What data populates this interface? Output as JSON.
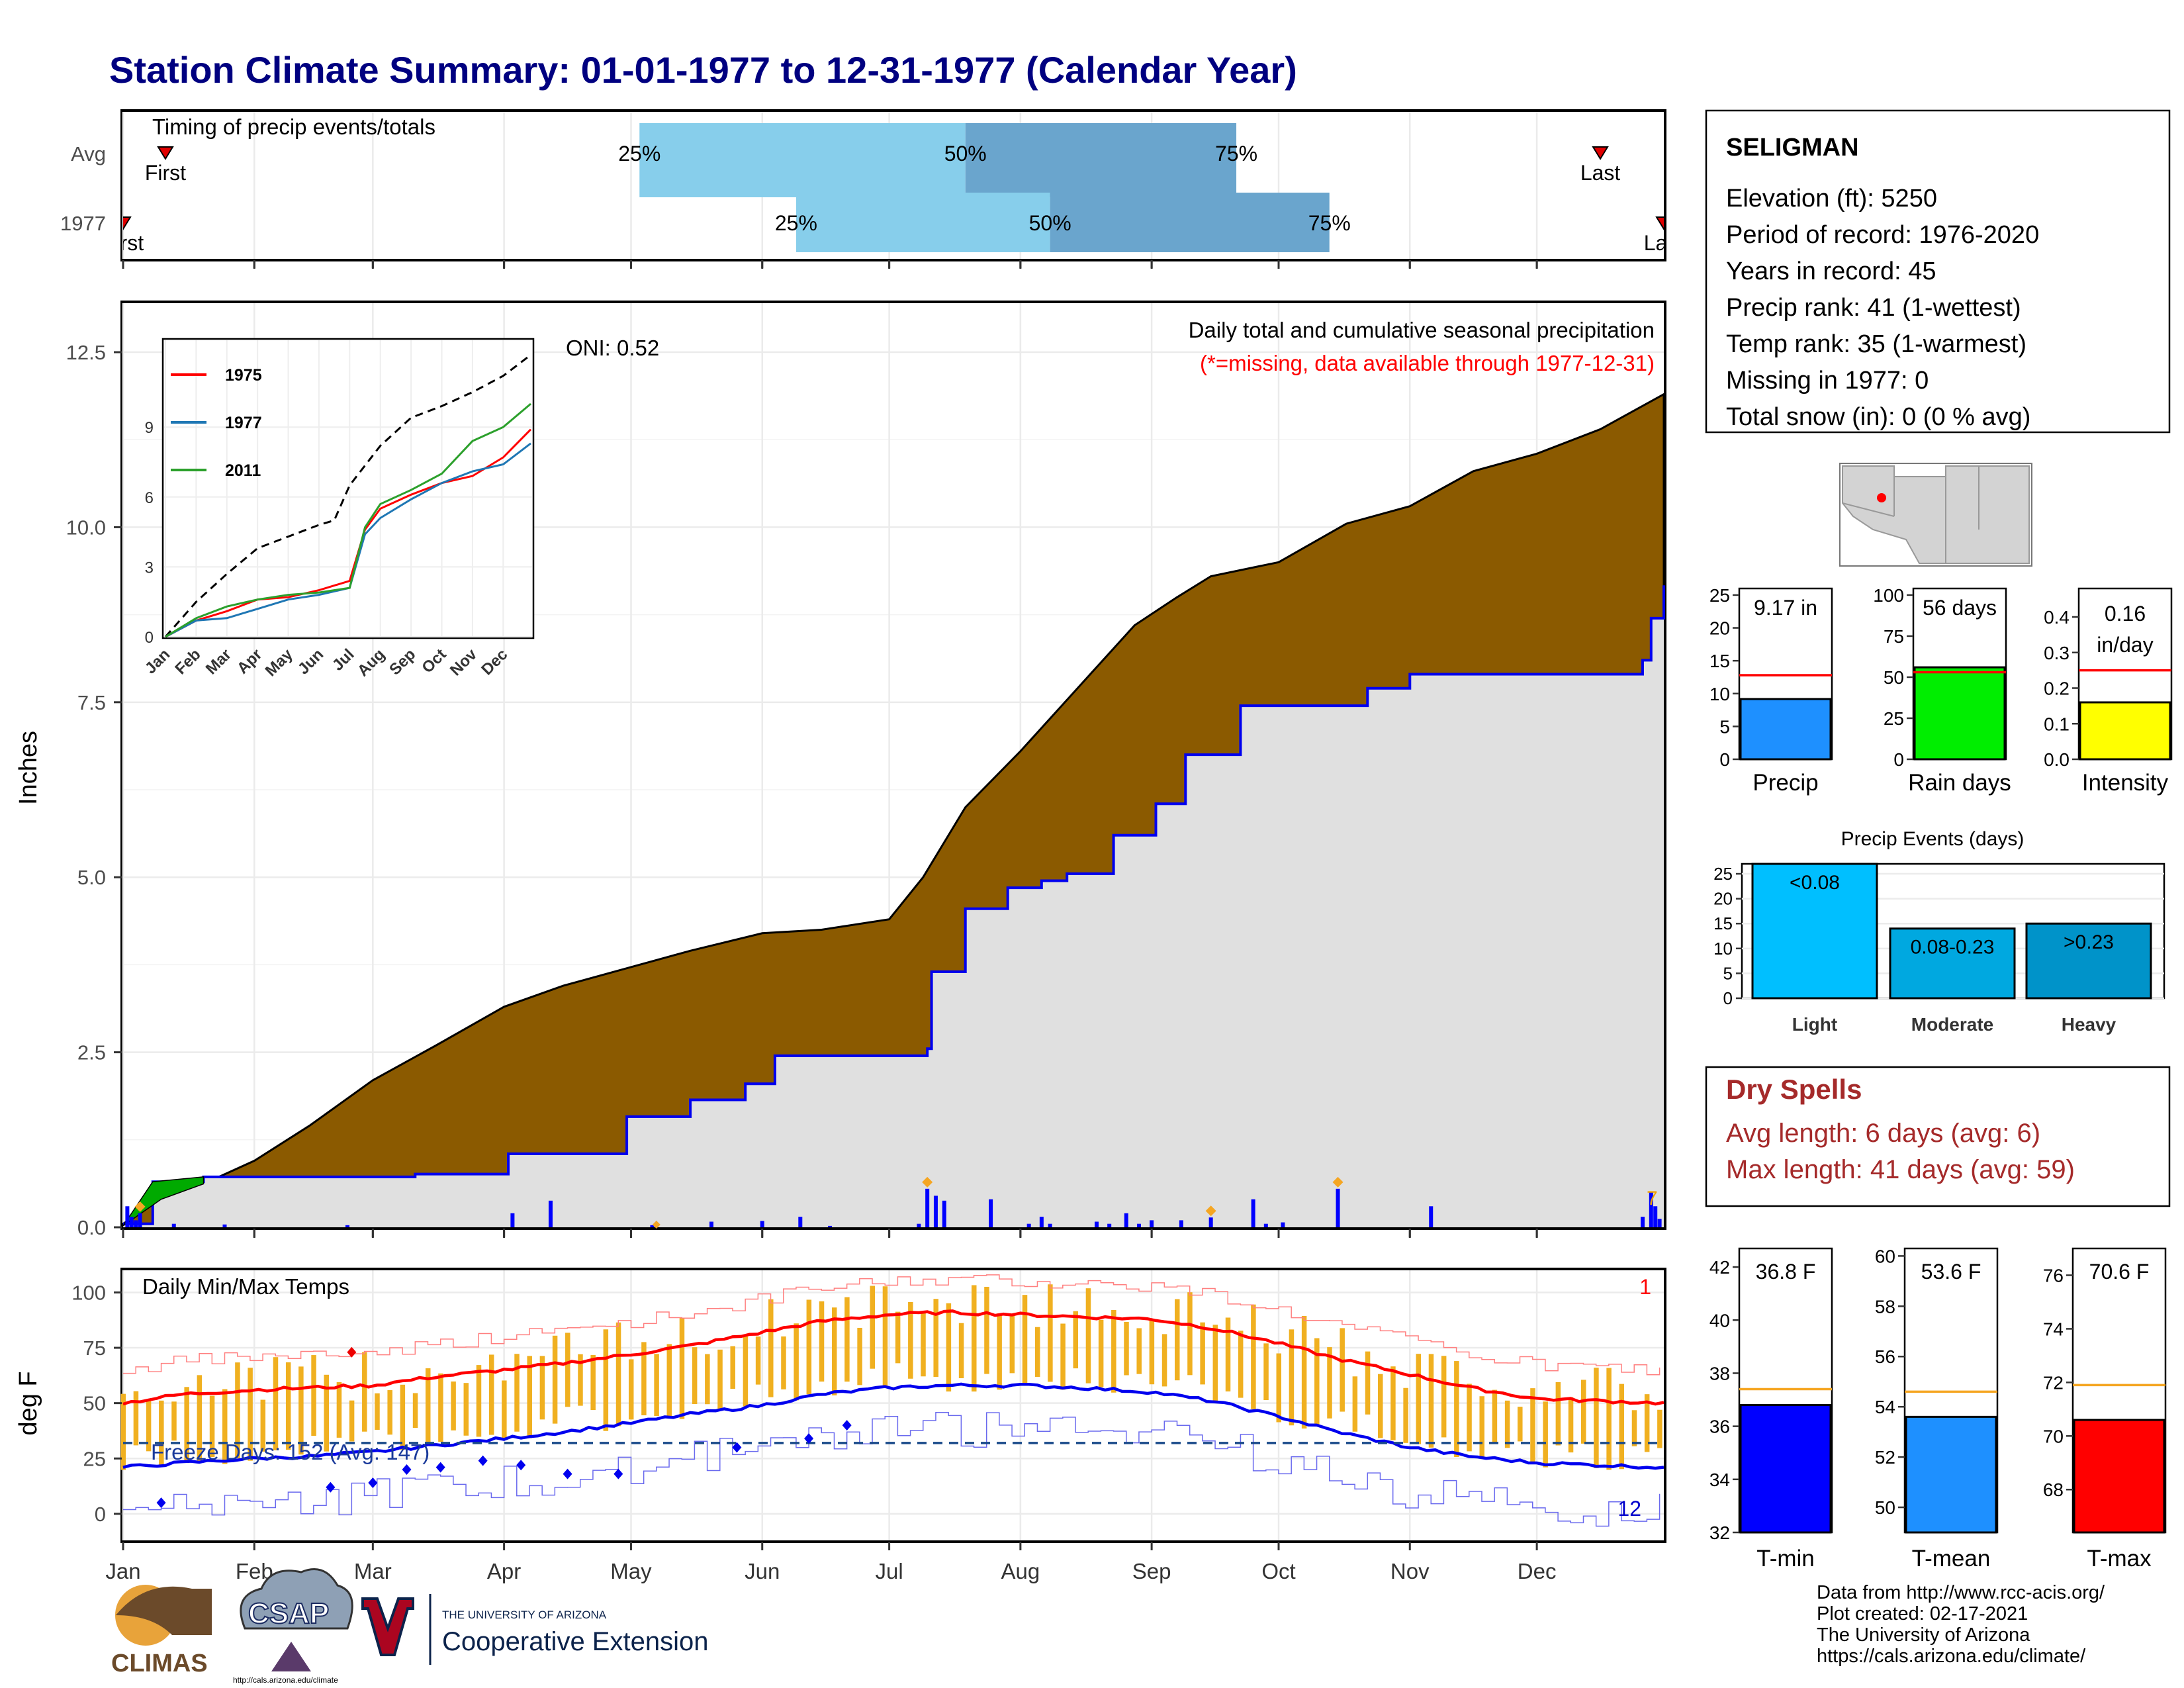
{
  "title": "Station Climate Summary: 01-01-1977 to 12-31-1977 (Calendar Year)",
  "colors": {
    "title": "#000080",
    "precip_fill": "#8b5a00",
    "base_fill": "#e0e0e0",
    "bar_blue": "#0000ff",
    "temp_bar": "#f0b020",
    "dry_red": "#a52a2a",
    "tmin": "#0000ff",
    "tmean": "#1e90ff",
    "tmax": "#ff0000",
    "rain": "#00ee00",
    "intensity": "#ffff00",
    "light": "#00bfff",
    "moderate": "#00a8e0",
    "heavy": "#0093c9"
  },
  "timing": {
    "label": "Timing of precip events/totals",
    "rows": [
      "Avg",
      "1977"
    ],
    "avg": {
      "first_label": "First",
      "last_label": "Last",
      "p25": "25%",
      "p50": "50%",
      "p75": "75%",
      "q25_doy": 123,
      "q50_doy": 200,
      "q75_doy": 264,
      "first_doy": 11,
      "last_doy": 350
    },
    "year": {
      "first_label": "First",
      "last_label": "Last",
      "p25": "25%",
      "p50": "50%",
      "p75": "75%",
      "q25_doy": 160,
      "q50_doy": 220,
      "q75_doy": 286,
      "first_doy": 1,
      "last_doy": 365
    }
  },
  "months": [
    "Jan",
    "Feb",
    "Mar",
    "Apr",
    "May",
    "Jun",
    "Jul",
    "Aug",
    "Sep",
    "Oct",
    "Nov",
    "Dec"
  ],
  "precip_panel": {
    "ylabel": "Inches",
    "yticks": [
      "0.0",
      "2.5",
      "5.0",
      "7.5",
      "10.0",
      "12.5"
    ],
    "ylim": [
      0,
      13.2
    ],
    "annotation": "Daily total and cumulative seasonal precipitation",
    "missing_note": "(*=missing, data available through 1977-12-31)",
    "oni": "ONI: 0.52",
    "end_marker": "7"
  },
  "inset": {
    "yticks": [
      "0",
      "3",
      "6",
      "9"
    ],
    "xticks": [
      "Jan",
      "Feb",
      "Mar",
      "Apr",
      "May",
      "Jun",
      "Jul",
      "Aug",
      "Sep",
      "Oct",
      "Nov",
      "Dec"
    ],
    "legend": [
      {
        "name": "1975",
        "color": "#ff0000"
      },
      {
        "name": "1977",
        "color": "#1f77b4"
      },
      {
        "name": "2011",
        "color": "#2ca02c"
      }
    ]
  },
  "temp_panel": {
    "ylabel": "deg F",
    "title": "Daily Min/Max Temps",
    "yticks": [
      "0",
      "25",
      "50",
      "75",
      "100"
    ],
    "ylim": [
      -12,
      110
    ],
    "freeze_label": "Freeze Days: 152 (Avg: 147)",
    "corner_max": "1",
    "corner_min": "12",
    "freeze_line": 32
  },
  "station": {
    "name": "SELIGMAN",
    "lines": [
      "Elevation (ft): 5250",
      "Period of record: 1976-2020",
      "Years in record: 45",
      "Precip rank: 41 (1-wettest)",
      "Temp rank: 35 (1-warmest)",
      "Missing in 1977: 0",
      "Total snow (in): 0 (0 % avg)"
    ]
  },
  "mini_bars": [
    {
      "label": "Precip",
      "value": 9.17,
      "value_text": "9.17 in",
      "avg": 12.8,
      "yticks": [
        "0",
        "5",
        "10",
        "15",
        "20",
        "25"
      ],
      "ymax": 26,
      "color": "#1e90ff"
    },
    {
      "label": "Rain days",
      "value": 56,
      "value_text": "56 days",
      "avg": 53,
      "yticks": [
        "0",
        "25",
        "50",
        "75",
        "100"
      ],
      "ymax": 104,
      "color": "#00ee00"
    },
    {
      "label": "Intensity",
      "value": 0.16,
      "value_text": "0.16",
      "value_text2": "in/day",
      "avg": 0.25,
      "yticks": [
        "0.0",
        "0.1",
        "0.2",
        "0.3",
        "0.4"
      ],
      "ymax": 0.48,
      "color": "#ffff00"
    }
  ],
  "events": {
    "title": "Precip Events (days)",
    "yticks": [
      "0",
      "5",
      "10",
      "15",
      "20",
      "25"
    ],
    "ymax": 27,
    "bars": [
      {
        "label": "Light",
        "value": 27,
        "value_text": "<0.08",
        "color": "#00bfff"
      },
      {
        "label": "Moderate",
        "value": 14,
        "value_text": "0.08-0.23",
        "color": "#00a8e0"
      },
      {
        "label": "Heavy",
        "value": 15,
        "value_text": ">0.23",
        "color": "#0093c9"
      }
    ]
  },
  "dry_spells": {
    "title": "Dry Spells",
    "avg_line": "Avg length: 6 days (avg: 6)",
    "max_line": "Max length: 41 days (avg: 59)"
  },
  "temp_bars": [
    {
      "label": "T-min",
      "value": 36.8,
      "value_text": "36.8 F",
      "avg": 37.4,
      "yticks": [
        "32",
        "34",
        "36",
        "38",
        "40",
        "42"
      ],
      "ymin": 32,
      "ymax": 42.7,
      "color": "#0000ff"
    },
    {
      "label": "T-mean",
      "value": 53.6,
      "value_text": "53.6 F",
      "avg": 54.6,
      "yticks": [
        "50",
        "52",
        "54",
        "56",
        "58",
        "60"
      ],
      "ymin": 49,
      "ymax": 60.3,
      "color": "#1e90ff"
    },
    {
      "label": "T-max",
      "value": 70.6,
      "value_text": "70.6 F",
      "avg": 71.9,
      "yticks": [
        "68",
        "70",
        "72",
        "74",
        "76"
      ],
      "ymin": 66.4,
      "ymax": 77.0,
      "color": "#ff0000"
    }
  ],
  "credits": [
    "Data from http://www.rcc-acis.org/",
    "Plot created: 02-17-2021",
    "The University of Arizona",
    "https://cals.arizona.edu/climate/"
  ],
  "logos": {
    "climas": "CLIMAS",
    "csap": "CSAP",
    "csap_url": "http://cals.arizona.edu/climate",
    "ua_line1": "THE UNIVERSITY OF ARIZONA",
    "ua_line2": "Cooperative Extension"
  },
  "chart_data": [
    {
      "type": "area",
      "title": "Daily total and cumulative seasonal precipitation",
      "ylabel": "Inches",
      "ylim": [
        0,
        13.2
      ],
      "x_units": "day of year",
      "series": [
        {
          "name": "",
          "x": [
            1,
            10,
            20,
            32,
            45,
            60,
            75,
            91,
            105,
            120,
            135,
            152,
            166,
            182,
            190,
            200,
            213,
            225,
            240,
            250,
            258,
            274,
            290,
            305,
            320,
            335,
            350,
            365
          ],
          "values": [
            0.05,
            0.4,
            0.62,
            0.95,
            1.45,
            2.1,
            2.6,
            3.15,
            3.45,
            3.7,
            3.95,
            4.2,
            4.25,
            4.4,
            5.0,
            6.0,
            6.8,
            7.6,
            8.6,
            9.0,
            9.3,
            9.5,
            10.05,
            10.3,
            10.8,
            11.05,
            11.4,
            11.9
          ]
        },
        {
          "name": "1977",
          "x": [
            1,
            8,
            20,
            50,
            70,
            85,
            92,
            105,
            120,
            135,
            148,
            155,
            165,
            175,
            191,
            192,
            200,
            210,
            218,
            224,
            235,
            245,
            252,
            258,
            265,
            280,
            295,
            305,
            320,
            340,
            360,
            362,
            365
          ],
          "values": [
            0.05,
            0.65,
            0.72,
            0.72,
            0.76,
            0.76,
            1.05,
            1.05,
            1.58,
            1.82,
            2.05,
            2.45,
            2.45,
            2.45,
            2.55,
            3.65,
            4.55,
            4.85,
            4.95,
            5.05,
            5.6,
            6.05,
            6.75,
            6.75,
            7.45,
            7.45,
            7.7,
            7.9,
            7.9,
            7.9,
            8.1,
            8.7,
            9.17
          ]
        }
      ],
      "daily_bars": {
        "x": [
          2,
          3,
          4,
          5,
          13,
          25,
          54,
          93,
          102,
          126,
          140,
          152,
          161,
          168,
          189,
          191,
          193,
          195,
          206,
          215,
          218,
          220,
          231,
          234,
          238,
          241,
          244,
          251,
          258,
          268,
          271,
          275,
          288,
          310,
          360,
          362,
          363,
          364
        ],
        "values": [
          0.3,
          0.15,
          0.1,
          0.2,
          0.05,
          0.04,
          0.03,
          0.2,
          0.38,
          0.03,
          0.08,
          0.09,
          0.15,
          0.02,
          0.05,
          0.55,
          0.45,
          0.38,
          0.4,
          0.05,
          0.15,
          0.05,
          0.08,
          0.05,
          0.2,
          0.05,
          0.1,
          0.1,
          0.14,
          0.4,
          0.05,
          0.07,
          0.55,
          0.3,
          0.15,
          0.5,
          0.3,
          0.12
        ]
      }
    },
    {
      "type": "line",
      "title": "",
      "x_units": "month index",
      "series": [
        {
          "name": "",
          "x": [
            0,
            1,
            2,
            3,
            4,
            5,
            5.5,
            6,
            7,
            8,
            9,
            10,
            11,
            11.9
          ],
          "values": [
            0,
            1.5,
            2.7,
            3.8,
            4.3,
            4.8,
            5.0,
            6.5,
            8.2,
            9.4,
            9.9,
            10.5,
            11.2,
            12.1
          ]
        },
        {
          "name": "1975",
          "x": [
            0,
            1,
            2,
            3,
            4,
            5,
            6,
            6.5,
            7,
            8,
            9,
            10,
            11,
            11.9
          ],
          "values": [
            0,
            0.7,
            1.1,
            1.6,
            1.7,
            2.0,
            2.4,
            4.6,
            5.5,
            6.1,
            6.6,
            6.9,
            7.7,
            8.9
          ]
        },
        {
          "name": "1977",
          "x": [
            0,
            1,
            2,
            3,
            4,
            5,
            6,
            6.5,
            7,
            8,
            9,
            10,
            11,
            11.9
          ],
          "values": [
            0,
            0.7,
            0.8,
            1.2,
            1.6,
            1.8,
            2.1,
            4.4,
            5.1,
            5.9,
            6.6,
            7.1,
            7.4,
            8.3
          ]
        },
        {
          "name": "2011",
          "x": [
            0,
            1,
            2,
            3,
            4,
            5,
            6,
            6.5,
            7,
            8,
            9,
            10,
            11,
            11.9
          ],
          "values": [
            0,
            0.8,
            1.3,
            1.6,
            1.8,
            1.9,
            2.1,
            4.7,
            5.7,
            6.3,
            7.0,
            8.4,
            9.0,
            10.0
          ]
        }
      ]
    },
    {
      "type": "line",
      "title": "Daily Min/Max Temps",
      "ylabel": "deg F",
      "ylim": [
        -12,
        110
      ],
      "x_units": "day of year",
      "series": [
        {
          "name": "",
          "x": [
            1,
            15,
            32,
            46,
            60,
            75,
            91,
            105,
            121,
            135,
            152,
            166,
            182,
            196,
            213,
            227,
            244,
            258,
            274,
            288,
            305,
            319,
            335,
            350,
            365
          ],
          "values": [
            50,
            54,
            56,
            57,
            58,
            62,
            65,
            68,
            72,
            76,
            82,
            87,
            90,
            91,
            90,
            89,
            88,
            84,
            77,
            70,
            63,
            57,
            52,
            51,
            50
          ]
        },
        {
          "name": "",
          "x": [
            1,
            15,
            32,
            46,
            60,
            75,
            91,
            105,
            121,
            135,
            152,
            166,
            182,
            196,
            213,
            227,
            244,
            258,
            274,
            288,
            305,
            319,
            335,
            350,
            365
          ],
          "values": [
            21,
            23,
            25,
            26,
            28,
            31,
            34,
            37,
            41,
            45,
            49,
            54,
            57,
            58,
            58,
            57,
            55,
            51,
            44,
            37,
            30,
            26,
            23,
            22,
            21
          ]
        }
      ],
      "freeze_line": 32
    }
  ]
}
